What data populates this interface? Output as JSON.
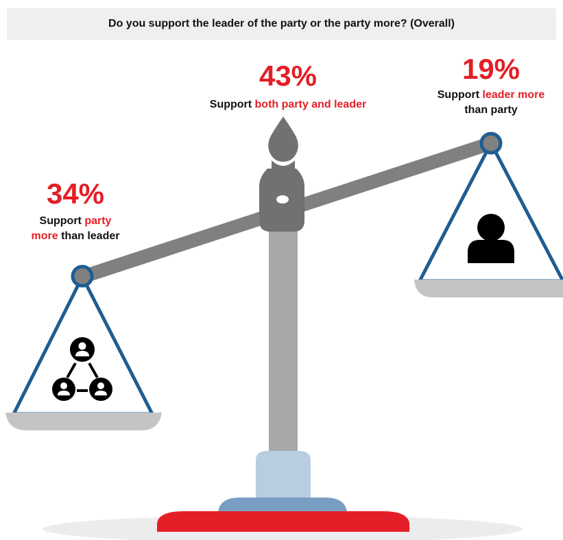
{
  "title": "Do you support the leader of the party or the party more? (Overall)",
  "callouts": {
    "both": {
      "percent": "43%",
      "text_a": "Support ",
      "text_b": "both party and leader"
    },
    "leader": {
      "percent": "19%",
      "line1_a": "Support ",
      "line1_b": "leader more",
      "line2": "than party"
    },
    "party": {
      "percent": "34%",
      "line1_a": "Support ",
      "line1_b": "party",
      "line2_a": "more",
      "line2_b": " than leader"
    }
  },
  "icons": {
    "left_pan": "group-network-icon",
    "right_pan": "person-icon"
  },
  "colors": {
    "accent_red": "#e41e26",
    "rope_blue": "#1f5d92",
    "beam_gray": "#808080",
    "pillar_gray": "#a8a8a8",
    "pan_gray": "#c4c4c4",
    "base_light_blue": "#b9cde0",
    "base_blue": "#7a9ec3",
    "floor_gray": "#ececec"
  }
}
